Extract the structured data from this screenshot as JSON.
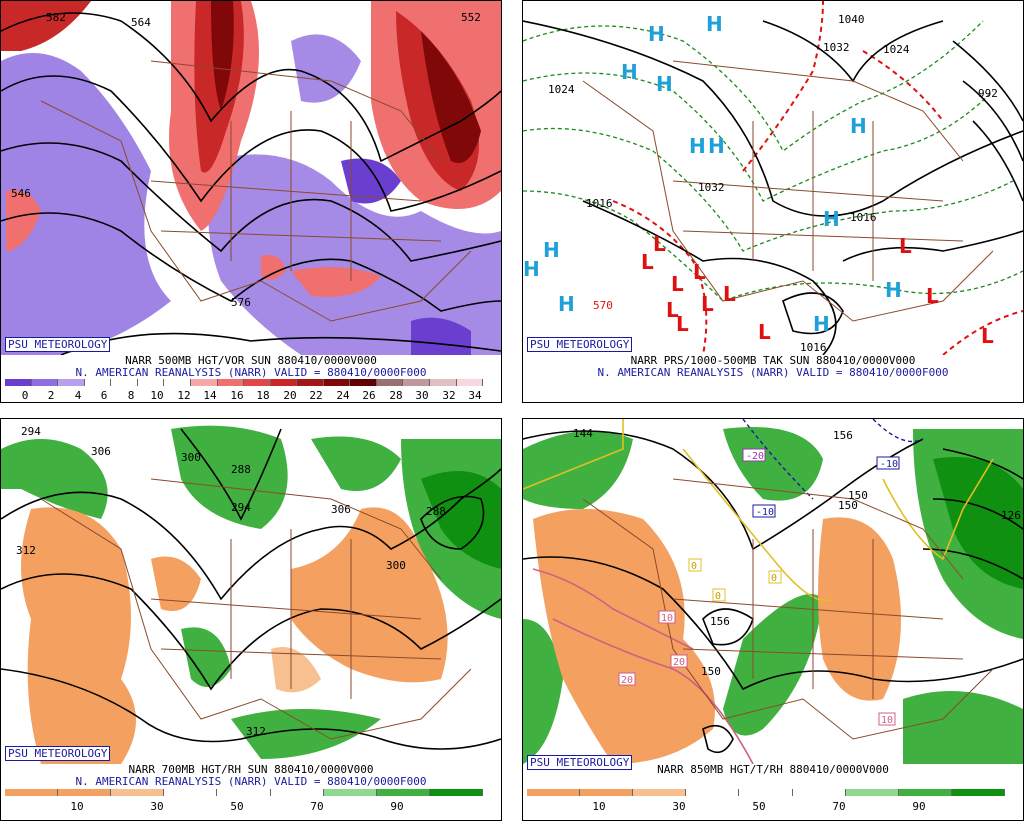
{
  "panels": [
    {
      "id": "p500",
      "badge": "PSU METEOROLOGY",
      "title_line1": "NARR 500MB HGT/VOR SUN 880410/0000V000",
      "title_line2": "N. AMERICAN REANALYSIS (NARR) VALID = 880410/0000F000",
      "colorbar_labels": [
        "0",
        "2",
        "4",
        "6",
        "8",
        "10",
        "12",
        "14",
        "16",
        "18",
        "20",
        "22",
        "24",
        "26",
        "28",
        "30",
        "32",
        "34"
      ],
      "colorbar_colors": [
        "#6a3fd0",
        "#8f6ee0",
        "#b7a0ee",
        "#ffffff",
        "#ffffff",
        "#ffffff",
        "#ffffff",
        "#f7a7a7",
        "#f07070",
        "#e04848",
        "#c82828",
        "#a01818",
        "#800808",
        "#600000",
        "#9a7070",
        "#c09a9a",
        "#e0c0c0",
        "#f8d8e0"
      ],
      "contour_labels": [
        "582",
        "564",
        "552",
        "576",
        "546"
      ]
    },
    {
      "id": "pprs",
      "badge": "PSU METEOROLOGY",
      "title_line1": "NARR PRS/1000-500MB TAK SUN 880410/0000V000",
      "title_line2": "N. AMERICAN REANALYSIS (NARR) VALID = 880410/0000F000",
      "high_symbol": "H",
      "low_symbol": "L",
      "contour_labels": [
        "1040",
        "1032",
        "1024",
        "992",
        "1024",
        "1032",
        "1016",
        "1016",
        "1016",
        "570"
      ]
    },
    {
      "id": "p700",
      "badge": "PSU METEOROLOGY",
      "title_line1": "NARR 700MB HGT/RH SUN 880410/0000V000",
      "title_line2": "N. AMERICAN REANALYSIS (NARR) VALID = 880410/0000F000",
      "colorbar_labels": [
        "10",
        "30",
        "50",
        "70",
        "90"
      ],
      "colorbar_colors": [
        "#f4a060",
        "#f4a060",
        "#f8c090",
        "#ffffff",
        "#ffffff",
        "#ffffff",
        "#90d890",
        "#40b040",
        "#109010"
      ],
      "contour_labels": [
        "294",
        "306",
        "300",
        "288",
        "294",
        "306",
        "312",
        "300",
        "288",
        "312"
      ]
    },
    {
      "id": "p850",
      "badge": "PSU METEOROLOGY",
      "title_line1": "NARR 850MB HGT/T/RH 880410/0000V000",
      "colorbar_labels": [
        "10",
        "30",
        "50",
        "70",
        "90"
      ],
      "colorbar_colors": [
        "#f4a060",
        "#f4a060",
        "#f8c090",
        "#ffffff",
        "#ffffff",
        "#ffffff",
        "#90d890",
        "#40b040",
        "#109010"
      ],
      "contour_labels": [
        "144",
        "156",
        "150",
        "150",
        "126",
        "156",
        "150"
      ],
      "temp_labels": [
        "-20",
        "-10",
        "-10",
        "0",
        "0",
        "0",
        "10",
        "20",
        "20",
        "10"
      ]
    }
  ]
}
